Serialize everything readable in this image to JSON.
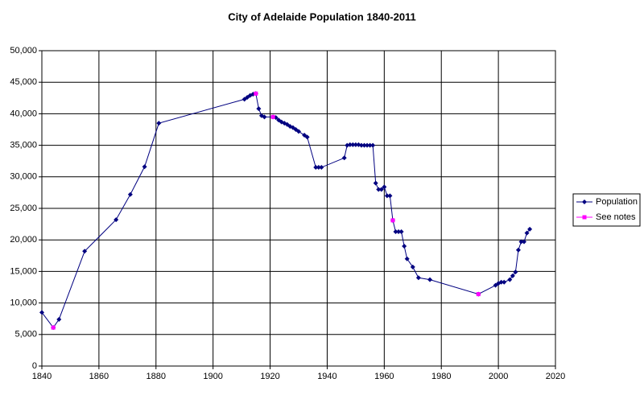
{
  "chart_data": {
    "type": "line",
    "title": "City of Adelaide Population 1840-2011",
    "xlim": [
      1840,
      2020
    ],
    "xticks": [
      1840,
      1860,
      1880,
      1900,
      1920,
      1940,
      1960,
      1980,
      2000,
      2020
    ],
    "ylim": [
      0,
      50000
    ],
    "yticks": [
      0,
      {
        "value": 5000,
        "label": "5,000"
      },
      {
        "value": 10000,
        "label": "10,000"
      },
      {
        "value": 15000,
        "label": "15,000"
      },
      {
        "value": 20000,
        "label": "20,000"
      },
      {
        "value": 25000,
        "label": "25,000"
      },
      {
        "value": 30000,
        "label": "30,000"
      },
      {
        "value": 35000,
        "label": "35,000"
      },
      {
        "value": 40000,
        "label": "40,000"
      },
      {
        "value": 45000,
        "label": "45,000"
      },
      {
        "value": 50000,
        "label": "50,000"
      }
    ],
    "grid": true,
    "legend": "right",
    "series": [
      {
        "name": "Population",
        "color": "#000080",
        "x": [
          1840,
          1844,
          1846,
          1855,
          1866,
          1871,
          1876,
          1881,
          1911,
          1912,
          1913,
          1914,
          1915,
          1916,
          1917,
          1918,
          1921,
          1922,
          1923,
          1924,
          1925,
          1926,
          1927,
          1928,
          1929,
          1930,
          1932,
          1933,
          1936,
          1937,
          1938,
          1946,
          1947,
          1948,
          1949,
          1950,
          1951,
          1952,
          1953,
          1954,
          1955,
          1956,
          1957,
          1958,
          1959,
          1960,
          1961,
          1962,
          1963,
          1964,
          1965,
          1966,
          1967,
          1968,
          1970,
          1972,
          1976,
          1993,
          1999,
          2000,
          2001,
          2002,
          2004,
          2005,
          2006,
          2007,
          2008,
          2009,
          2010,
          2011
        ],
        "values": [
          8500,
          6100,
          7400,
          18200,
          23200,
          27200,
          31600,
          38500,
          42300,
          42600,
          42900,
          43100,
          43200,
          40800,
          39700,
          39500,
          39500,
          39400,
          39000,
          38700,
          38500,
          38300,
          38000,
          37800,
          37500,
          37200,
          36600,
          36300,
          31500,
          31500,
          31500,
          33000,
          35000,
          35100,
          35100,
          35100,
          35100,
          35000,
          35000,
          35000,
          35000,
          35000,
          29000,
          28000,
          28000,
          28400,
          27000,
          27000,
          23100,
          21300,
          21300,
          21300,
          19000,
          17000,
          15700,
          14000,
          13700,
          11400,
          12800,
          13100,
          13300,
          13300,
          13700,
          14300,
          14900,
          18400,
          19700,
          19700,
          21100,
          21700
        ]
      },
      {
        "name": "See notes",
        "color": "#ff00ff",
        "x": [
          1844,
          1915,
          1921,
          1963,
          1993
        ],
        "values": [
          6100,
          43200,
          39500,
          23100,
          11400
        ]
      }
    ]
  }
}
